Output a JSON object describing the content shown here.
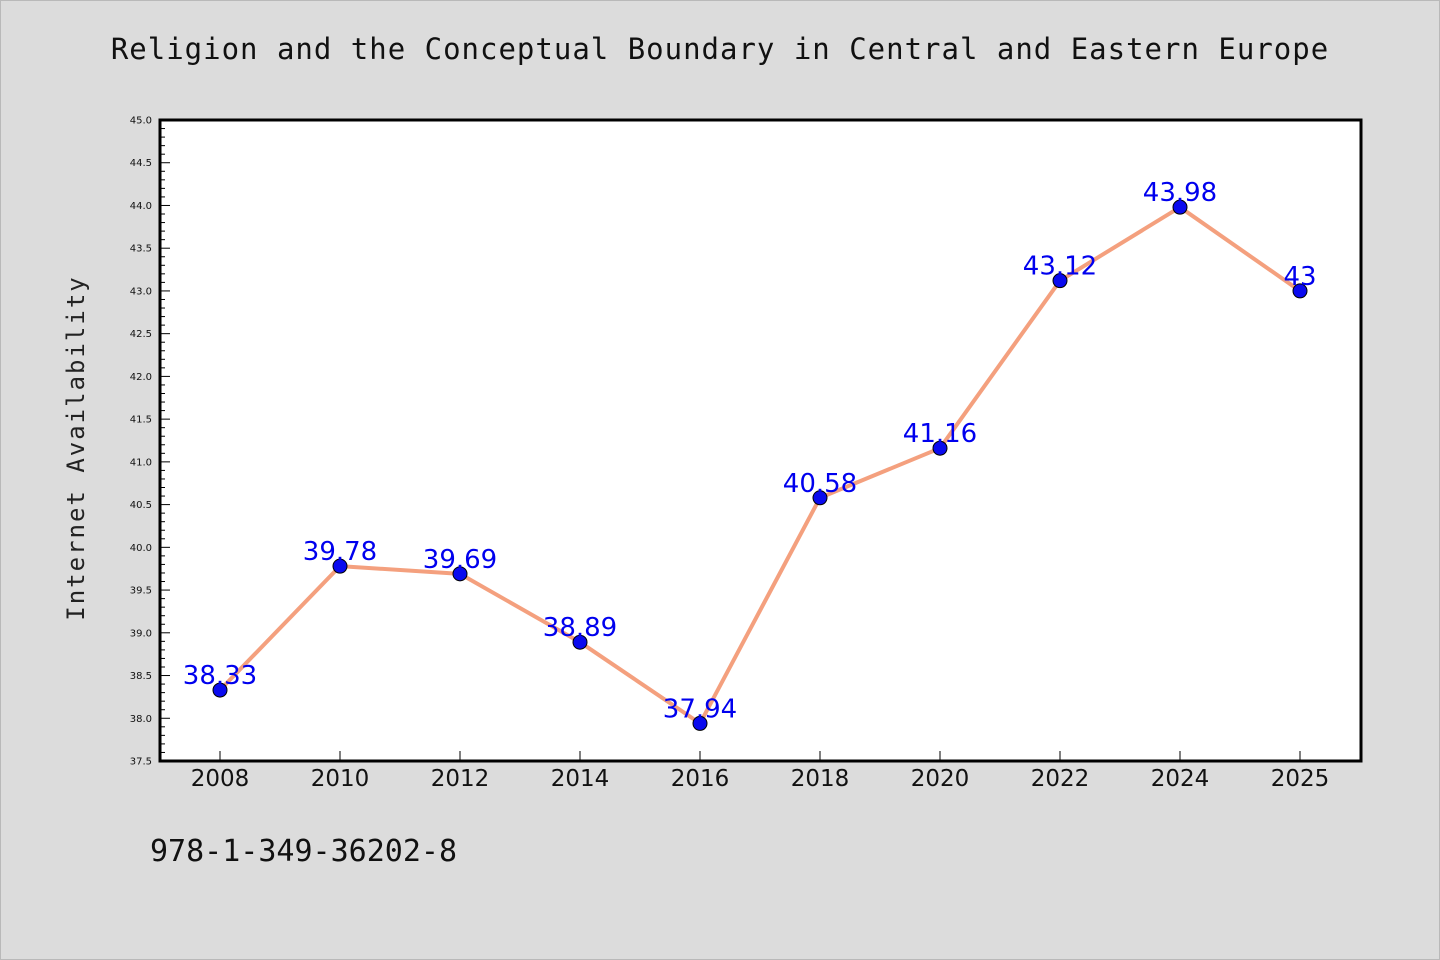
{
  "chart_data": {
    "type": "line",
    "title": "Religion and the Conceptual Boundary in Central and Eastern Europe",
    "ylabel": "Internet Availability",
    "xlabel": "",
    "categories": [
      "2008",
      "2010",
      "2012",
      "2014",
      "2016",
      "2018",
      "2020",
      "2022",
      "2024",
      "2025"
    ],
    "series": [
      {
        "values": [
          38.33,
          39.78,
          39.69,
          38.89,
          37.94,
          40.58,
          41.16,
          43.12,
          43.98,
          43
        ],
        "data_labels": [
          "38.33",
          "39.78",
          "39.69",
          "38.89",
          "37.94",
          "40.58",
          "41.16",
          "43.12",
          "43.98",
          "43"
        ]
      }
    ],
    "ylim": [
      37.5,
      45.0
    ],
    "yticks": [
      "37.5",
      "38.0",
      "38.5",
      "39.0",
      "39.5",
      "40.0",
      "40.5",
      "41.0",
      "41.5",
      "42.0",
      "42.5",
      "43.0",
      "43.5",
      "44.0",
      "44.5",
      "45.0"
    ],
    "grid": false,
    "legend": "none",
    "colors": {
      "line": "#f4a07e",
      "marker": "#0a0aef",
      "data_label": "#0000ee",
      "background": "#dcdcdc",
      "plot_background": "#ffffff"
    }
  },
  "footer": {
    "code": "978-1-349-36202-8"
  }
}
